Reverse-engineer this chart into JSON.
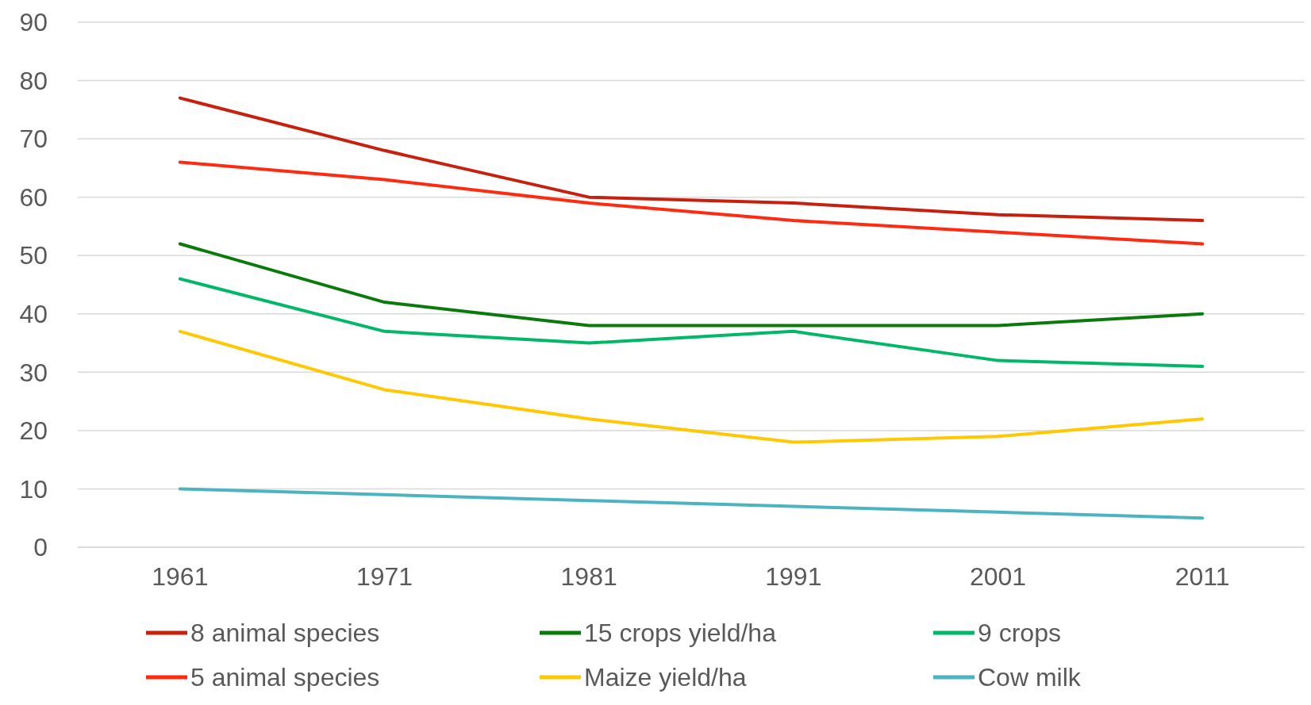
{
  "chart_data": {
    "type": "line",
    "categories": [
      "1961",
      "1971",
      "1981",
      "1991",
      "2001",
      "2011"
    ],
    "series": [
      {
        "name": "8 animal species",
        "color": "#c8200e",
        "values": [
          77,
          68,
          60,
          59,
          57,
          56
        ]
      },
      {
        "name": "15 crops yield/ha",
        "color": "#0a7a0a",
        "values": [
          52,
          42,
          38,
          38,
          38,
          40
        ]
      },
      {
        "name": "9 crops",
        "color": "#00b868",
        "values": [
          46,
          37,
          35,
          37,
          32,
          31
        ]
      },
      {
        "name": "5 animal species",
        "color": "#ff2a10",
        "values": [
          66,
          63,
          59,
          56,
          54,
          52
        ]
      },
      {
        "name": "Maize yield/ha",
        "color": "#ffc800",
        "values": [
          37,
          27,
          22,
          18,
          19,
          22
        ]
      },
      {
        "name": "Cow milk",
        "color": "#4bb4c0",
        "values": [
          10,
          9,
          8,
          7,
          6,
          5
        ]
      }
    ],
    "ylim": [
      0,
      90
    ],
    "yticks": [
      0,
      10,
      20,
      30,
      40,
      50,
      60,
      70,
      80,
      90
    ],
    "grid": "y",
    "legend": "bottom",
    "marker": "none",
    "line_style": "solid"
  }
}
